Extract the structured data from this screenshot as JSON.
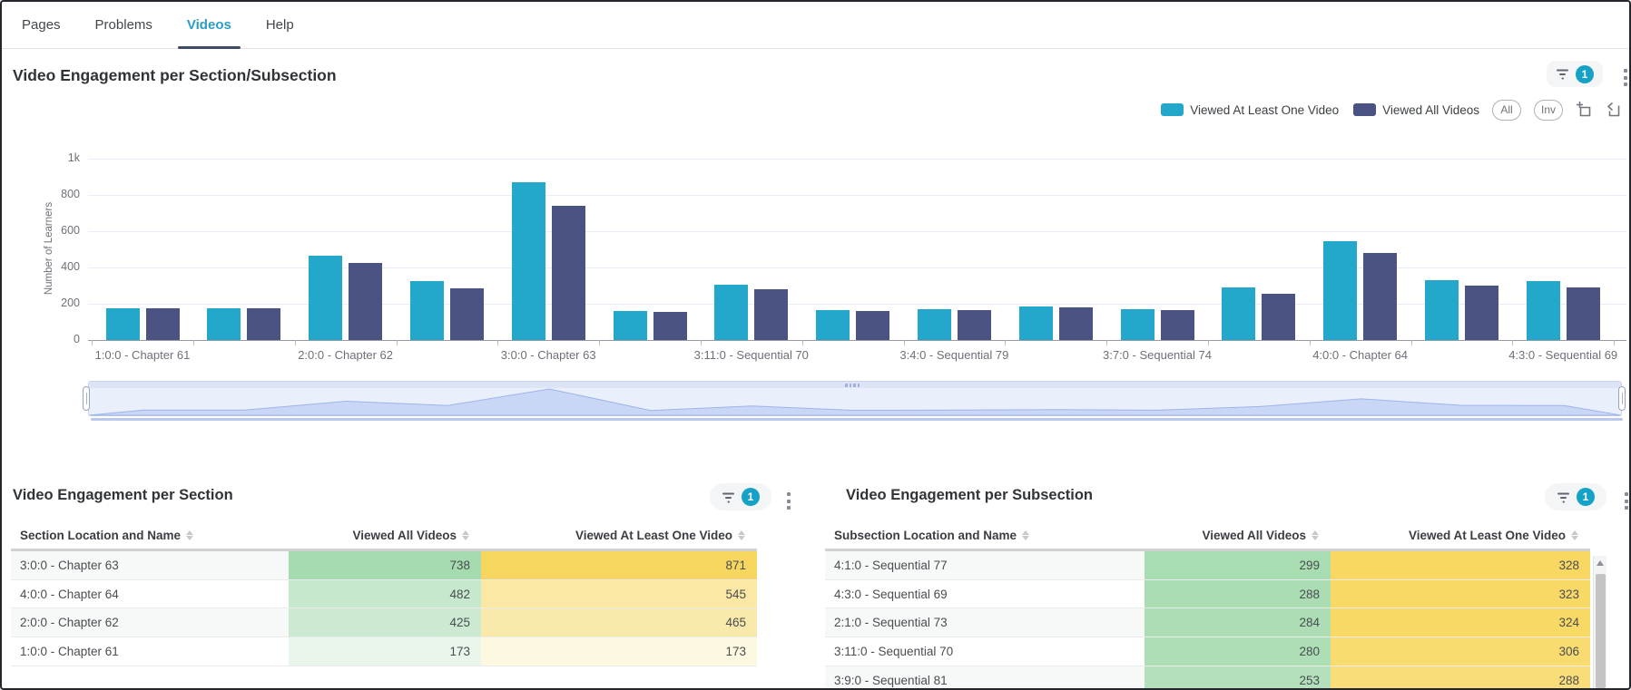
{
  "tabs": [
    {
      "label": "Pages",
      "active": false
    },
    {
      "label": "Problems",
      "active": false
    },
    {
      "label": "Videos",
      "active": true
    },
    {
      "label": "Help",
      "active": false
    }
  ],
  "chart_section": {
    "title": "Video Engagement per Section/Subsection",
    "filter_count": "1",
    "legend_actions": {
      "all": "All",
      "inv": "Inv"
    },
    "chart_data": {
      "type": "bar",
      "title": "Video Engagement per Section/Subsection",
      "xlabel": "",
      "ylabel": "Number of Learners",
      "ylim": [
        0,
        1000
      ],
      "ytick_labels": [
        "0",
        "200",
        "400",
        "600",
        "800",
        "1k"
      ],
      "ytick_values": [
        0,
        200,
        400,
        600,
        800,
        1000
      ],
      "grid": true,
      "legend_position": "top-right",
      "categories": [
        "1:0:0 - Chapter 61",
        "",
        "2:0:0 - Chapter 62",
        "",
        "3:0:0 - Chapter 63",
        "",
        "3:11:0 - Sequential 70",
        "",
        "3:4:0 - Sequential 79",
        "",
        "3:7:0 - Sequential 74",
        "",
        "4:0:0 - Chapter 64",
        "",
        "4:3:0 - Sequential 69"
      ],
      "series": [
        {
          "name": "Viewed At Least One Video",
          "color": "#23a8cc",
          "values": [
            173,
            173,
            465,
            324,
            871,
            160,
            306,
            165,
            170,
            186,
            168,
            288,
            545,
            328,
            323
          ]
        },
        {
          "name": "Viewed All Videos",
          "color": "#4a5382",
          "values": [
            173,
            173,
            425,
            284,
            738,
            156,
            280,
            161,
            165,
            182,
            164,
            253,
            482,
            299,
            288
          ]
        }
      ]
    },
    "zoom_slider": {
      "present": true
    }
  },
  "section_table": {
    "title": "Video Engagement per Section",
    "filter_count": "1",
    "columns": [
      "Section Location and Name",
      "Viewed All Videos",
      "Viewed At Least One Video"
    ],
    "rows": [
      {
        "name": "3:0:0 - Chapter 63",
        "viewed_all": "738",
        "viewed_one": "871",
        "all_color": "#a5dbae",
        "one_color": "#f7d65f"
      },
      {
        "name": "4:0:0 - Chapter 64",
        "viewed_all": "482",
        "viewed_one": "545",
        "all_color": "#c6e8cc",
        "one_color": "#fae8a4"
      },
      {
        "name": "2:0:0 - Chapter 62",
        "viewed_all": "425",
        "viewed_one": "465",
        "all_color": "#ccead2",
        "one_color": "#f9e9ab"
      },
      {
        "name": "1:0:0 - Chapter 61",
        "viewed_all": "173",
        "viewed_one": "173",
        "all_color": "#e9f6ec",
        "one_color": "#fdf8e0"
      }
    ]
  },
  "subsection_table": {
    "title": "Video Engagement per Subsection",
    "filter_count": "1",
    "columns": [
      "Subsection Location and Name",
      "Viewed All Videos",
      "Viewed At Least One Video"
    ],
    "rows": [
      {
        "name": "4:1:0 - Sequential 77",
        "viewed_all": "299",
        "viewed_one": "328",
        "all_color": "#a8dcb1",
        "one_color": "#f8d863"
      },
      {
        "name": "4:3:0 - Sequential 69",
        "viewed_all": "288",
        "viewed_one": "323",
        "all_color": "#abddb3",
        "one_color": "#f8d966"
      },
      {
        "name": "2:1:0 - Sequential 73",
        "viewed_all": "284",
        "viewed_one": "324",
        "all_color": "#acddb4",
        "one_color": "#f8d966"
      },
      {
        "name": "3:11:0 - Sequential 70",
        "viewed_all": "280",
        "viewed_one": "306",
        "all_color": "#addeb5",
        "one_color": "#f9db70"
      },
      {
        "name": "3:9:0 - Sequential 81",
        "viewed_all": "253",
        "viewed_one": "288",
        "all_color": "#b4e0bb",
        "one_color": "#f9dd79"
      }
    ]
  }
}
